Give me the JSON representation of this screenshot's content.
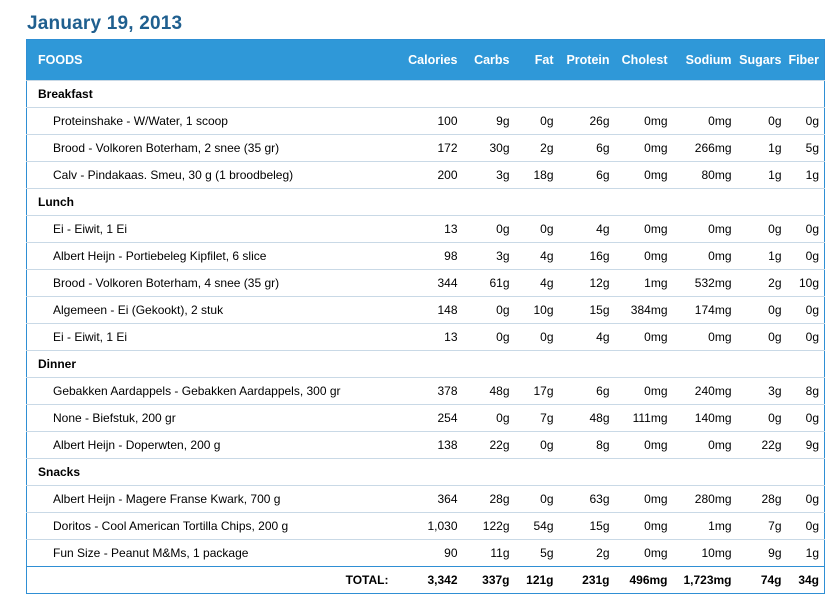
{
  "page_title": "January 19, 2013",
  "columns": [
    "FOODS",
    "Calories",
    "Carbs",
    "Fat",
    "Protein",
    "Cholest",
    "Sodium",
    "Sugars",
    "Fiber"
  ],
  "meals": [
    {
      "name": "Breakfast",
      "items": [
        [
          "Proteinshake - W/Water, 1 scoop",
          "100",
          "9g",
          "0g",
          "26g",
          "0mg",
          "0mg",
          "0g",
          "0g"
        ],
        [
          "Brood - Volkoren Boterham, 2 snee (35 gr)",
          "172",
          "30g",
          "2g",
          "6g",
          "0mg",
          "266mg",
          "1g",
          "5g"
        ],
        [
          "Calv - Pindakaas. Smeu, 30 g (1 broodbeleg)",
          "200",
          "3g",
          "18g",
          "6g",
          "0mg",
          "80mg",
          "1g",
          "1g"
        ]
      ]
    },
    {
      "name": "Lunch",
      "items": [
        [
          "Ei - Eiwit, 1 Ei",
          "13",
          "0g",
          "0g",
          "4g",
          "0mg",
          "0mg",
          "0g",
          "0g"
        ],
        [
          "Albert Heijn - Portiebeleg Kipfilet, 6 slice",
          "98",
          "3g",
          "4g",
          "16g",
          "0mg",
          "0mg",
          "1g",
          "0g"
        ],
        [
          "Brood - Volkoren Boterham, 4 snee (35 gr)",
          "344",
          "61g",
          "4g",
          "12g",
          "1mg",
          "532mg",
          "2g",
          "10g"
        ],
        [
          "Algemeen - Ei (Gekookt), 2 stuk",
          "148",
          "0g",
          "10g",
          "15g",
          "384mg",
          "174mg",
          "0g",
          "0g"
        ],
        [
          "Ei - Eiwit, 1 Ei",
          "13",
          "0g",
          "0g",
          "4g",
          "0mg",
          "0mg",
          "0g",
          "0g"
        ]
      ]
    },
    {
      "name": "Dinner",
      "items": [
        [
          "Gebakken Aardappels - Gebakken Aardappels, 300 gr",
          "378",
          "48g",
          "17g",
          "6g",
          "0mg",
          "240mg",
          "3g",
          "8g"
        ],
        [
          "None - Biefstuk, 200 gr",
          "254",
          "0g",
          "7g",
          "48g",
          "111mg",
          "140mg",
          "0g",
          "0g"
        ],
        [
          "Albert Heijn - Doperwten, 200 g",
          "138",
          "22g",
          "0g",
          "8g",
          "0mg",
          "0mg",
          "22g",
          "9g"
        ]
      ]
    },
    {
      "name": "Snacks",
      "items": [
        [
          "Albert Heijn - Magere Franse Kwark, 700 g",
          "364",
          "28g",
          "0g",
          "63g",
          "0mg",
          "280mg",
          "28g",
          "0g"
        ],
        [
          "Doritos - Cool American Tortilla Chips, 200 g",
          "1,030",
          "122g",
          "54g",
          "15g",
          "0mg",
          "1mg",
          "7g",
          "0g"
        ],
        [
          "Fun Size - Peanut M&Ms, 1 package",
          "90",
          "11g",
          "5g",
          "2g",
          "0mg",
          "10mg",
          "9g",
          "1g"
        ]
      ]
    }
  ],
  "total": [
    "TOTAL:",
    "3,342",
    "337g",
    "121g",
    "231g",
    "496mg",
    "1,723mg",
    "74g",
    "34g"
  ]
}
